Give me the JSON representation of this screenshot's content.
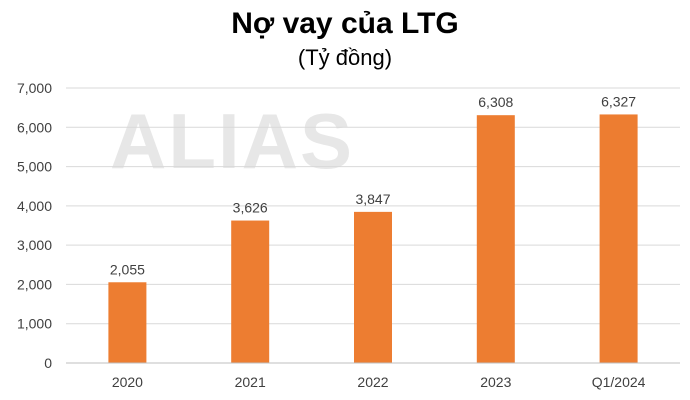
{
  "chart_data": {
    "type": "bar",
    "title": "Nợ vay của LTG",
    "subtitle": "(Tỷ đồng)",
    "watermark": "ALIAS",
    "categories": [
      "2020",
      "2021",
      "2022",
      "2023",
      "Q1/2024"
    ],
    "values": [
      2055,
      3626,
      3847,
      6308,
      6327
    ],
    "value_labels": [
      "2,055",
      "3,626",
      "3,847",
      "6,308",
      "6,327"
    ],
    "y_ticks": [
      0,
      1000,
      2000,
      3000,
      4000,
      5000,
      6000,
      7000
    ],
    "y_tick_labels": [
      "0",
      "1,000",
      "2,000",
      "3,000",
      "4,000",
      "5,000",
      "6,000",
      "7,000"
    ],
    "ylim": [
      0,
      7000
    ],
    "xlabel": "",
    "ylabel": "",
    "grid": true,
    "legend": "none",
    "colors": {
      "bar": "#ED7D31"
    }
  }
}
